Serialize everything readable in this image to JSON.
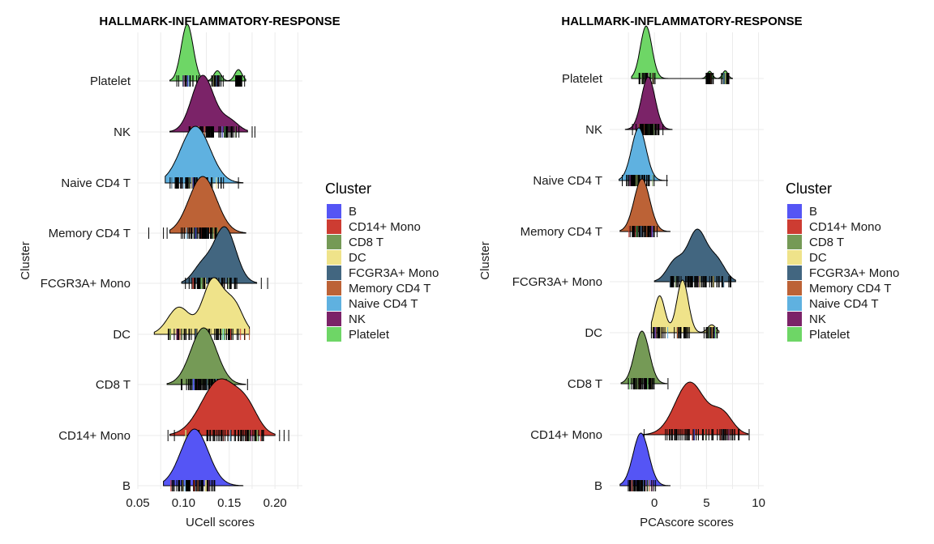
{
  "legend": {
    "title": "Cluster",
    "items": [
      {
        "label": "B",
        "color": "#5555f5"
      },
      {
        "label": "CD14+ Mono",
        "color": "#cd3c32"
      },
      {
        "label": "CD8 T",
        "color": "#759a56"
      },
      {
        "label": "DC",
        "color": "#efe38a"
      },
      {
        "label": "FCGR3A+ Mono",
        "color": "#426680"
      },
      {
        "label": "Memory CD4 T",
        "color": "#bc6236"
      },
      {
        "label": "Naive CD4 T",
        "color": "#5fb1e0"
      },
      {
        "label": "NK",
        "color": "#7b2368"
      },
      {
        "label": "Platelet",
        "color": "#6ed666"
      }
    ]
  },
  "chart_data": [
    {
      "type": "ridgeline",
      "title": "HALLMARK-INFLAMMATORY-RESPONSE",
      "xlabel": "UCell scores",
      "ylabel": "Cluster",
      "xlim": [
        0.05,
        0.23
      ],
      "xticks": [
        0.05,
        0.1,
        0.15,
        0.2
      ],
      "xtick_labels": [
        "0.05",
        "0.10",
        "0.15",
        "0.20"
      ],
      "categories": [
        "B",
        "CD14+ Mono",
        "CD8 T",
        "DC",
        "FCGR3A+ Mono",
        "Memory CD4 T",
        "Naive CD4 T",
        "NK",
        "Platelet"
      ],
      "grid": true,
      "legend_position": "right",
      "series": [
        {
          "name": "B",
          "range": [
            0.078,
            0.165
          ],
          "peaks": [
            {
              "x": 0.112,
              "w": 0.015,
              "h": 1.0
            }
          ],
          "outliers": []
        },
        {
          "name": "CD14+ Mono",
          "range": [
            0.085,
            0.2
          ],
          "peaks": [
            {
              "x": 0.14,
              "w": 0.02,
              "h": 1.0
            },
            {
              "x": 0.17,
              "w": 0.012,
              "h": 0.35
            }
          ],
          "outliers": [
            0.083,
            0.09,
            0.205,
            0.21,
            0.215
          ]
        },
        {
          "name": "CD8 T",
          "range": [
            0.082,
            0.168
          ],
          "peaks": [
            {
              "x": 0.122,
              "w": 0.014,
              "h": 1.0
            }
          ],
          "outliers": [
            0.17
          ]
        },
        {
          "name": "DC",
          "range": [
            0.068,
            0.172
          ],
          "peaks": [
            {
              "x": 0.095,
              "w": 0.012,
              "h": 0.5
            },
            {
              "x": 0.132,
              "w": 0.011,
              "h": 1.0
            },
            {
              "x": 0.155,
              "w": 0.01,
              "h": 0.55
            }
          ],
          "outliers": []
        },
        {
          "name": "FCGR3A+ Mono",
          "range": [
            0.098,
            0.18
          ],
          "peaks": [
            {
              "x": 0.145,
              "w": 0.012,
              "h": 1.0
            },
            {
              "x": 0.12,
              "w": 0.01,
              "h": 0.3
            }
          ],
          "outliers": [
            0.185,
            0.192
          ]
        },
        {
          "name": "Memory CD4 T",
          "range": [
            0.085,
            0.168
          ],
          "peaks": [
            {
              "x": 0.121,
              "w": 0.015,
              "h": 1.0
            }
          ],
          "outliers": [
            0.062,
            0.078,
            0.082
          ]
        },
        {
          "name": "Naive CD4 T",
          "range": [
            0.08,
            0.165
          ],
          "peaks": [
            {
              "x": 0.113,
              "w": 0.016,
              "h": 1.0
            }
          ],
          "outliers": [
            0.16
          ]
        },
        {
          "name": "NK",
          "range": [
            0.085,
            0.17
          ],
          "peaks": [
            {
              "x": 0.121,
              "w": 0.012,
              "h": 1.0
            },
            {
              "x": 0.15,
              "w": 0.01,
              "h": 0.2
            }
          ],
          "outliers": [
            0.175,
            0.178
          ]
        },
        {
          "name": "Platelet",
          "range": [
            0.085,
            0.168
          ],
          "peaks": [
            {
              "x": 0.104,
              "w": 0.0065,
              "h": 1.0
            },
            {
              "x": 0.137,
              "w": 0.004,
              "h": 0.18
            },
            {
              "x": 0.16,
              "w": 0.004,
              "h": 0.2
            }
          ],
          "outliers": []
        }
      ]
    },
    {
      "type": "ridgeline",
      "title": "HALLMARK-INFLAMMATORY-RESPONSE",
      "xlabel": "PCAscore scores",
      "ylabel": "Cluster",
      "xlim": [
        -4.3,
        10.5
      ],
      "xticks": [
        0,
        5,
        10
      ],
      "xtick_labels": [
        "0",
        "5",
        "10"
      ],
      "categories": [
        "B",
        "CD14+ Mono",
        "CD8 T",
        "DC",
        "FCGR3A+ Mono",
        "Memory CD4 T",
        "Naive CD4 T",
        "NK",
        "Platelet"
      ],
      "grid": true,
      "legend_position": "right",
      "series": [
        {
          "name": "B",
          "range": [
            -3.3,
            1.5
          ],
          "peaks": [
            {
              "x": -1.3,
              "w": 0.75,
              "h": 1.0
            }
          ],
          "outliers": []
        },
        {
          "name": "CD14+ Mono",
          "range": [
            -1.2,
            9.0
          ],
          "peaks": [
            {
              "x": 3.4,
              "w": 1.4,
              "h": 1.0
            },
            {
              "x": 6.5,
              "w": 1.0,
              "h": 0.4
            }
          ],
          "outliers": [
            -1.0,
            9.1
          ]
        },
        {
          "name": "CD8 T",
          "range": [
            -3.2,
            1.2
          ],
          "peaks": [
            {
              "x": -1.2,
              "w": 0.7,
              "h": 1.0
            }
          ],
          "outliers": [
            1.3
          ]
        },
        {
          "name": "DC",
          "range": [
            -0.3,
            6.2
          ],
          "peaks": [
            {
              "x": 0.5,
              "w": 0.5,
              "h": 0.7
            },
            {
              "x": 2.7,
              "w": 0.55,
              "h": 1.0
            },
            {
              "x": 5.5,
              "w": 0.4,
              "h": 0.15
            }
          ],
          "outliers": []
        },
        {
          "name": "FCGR3A+ Mono",
          "range": [
            0.0,
            7.8
          ],
          "peaks": [
            {
              "x": 4.1,
              "w": 0.9,
              "h": 1.0
            },
            {
              "x": 2.0,
              "w": 0.8,
              "h": 0.4
            },
            {
              "x": 6.0,
              "w": 0.8,
              "h": 0.4
            }
          ],
          "outliers": []
        },
        {
          "name": "Memory CD4 T",
          "range": [
            -3.3,
            1.5
          ],
          "peaks": [
            {
              "x": -1.2,
              "w": 0.75,
              "h": 1.0
            }
          ],
          "outliers": []
        },
        {
          "name": "Naive CD4 T",
          "range": [
            -3.4,
            1.3
          ],
          "peaks": [
            {
              "x": -1.5,
              "w": 0.7,
              "h": 1.0
            }
          ],
          "outliers": [
            1.2
          ]
        },
        {
          "name": "NK",
          "range": [
            -2.8,
            1.7
          ],
          "peaks": [
            {
              "x": -0.6,
              "w": 0.65,
              "h": 1.0
            }
          ],
          "outliers": []
        },
        {
          "name": "Platelet",
          "range": [
            -2.2,
            7.5
          ],
          "peaks": [
            {
              "x": -0.8,
              "w": 0.55,
              "h": 1.0
            },
            {
              "x": 5.3,
              "w": 0.25,
              "h": 0.14
            },
            {
              "x": 6.8,
              "w": 0.25,
              "h": 0.15
            }
          ],
          "outliers": []
        }
      ]
    }
  ]
}
